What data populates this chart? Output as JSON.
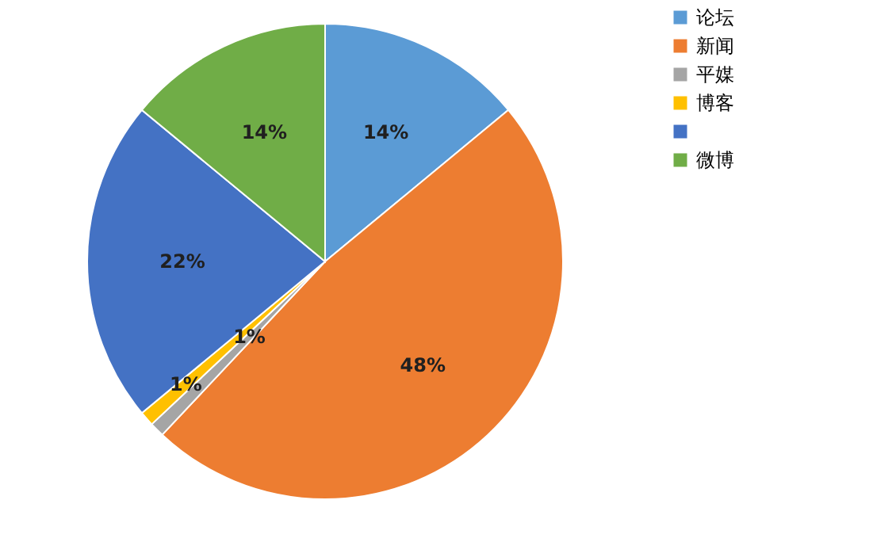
{
  "chart_data": {
    "type": "pie",
    "categories": [
      "论坛",
      "新闻",
      "平媒",
      "博客",
      null,
      "微博"
    ],
    "values": [
      14,
      48,
      1,
      1,
      22,
      14
    ],
    "colors": [
      "#5b9bd5",
      "#ed7d31",
      "#a5a5a5",
      "#ffc000",
      "#4472c4",
      "#70ad47"
    ],
    "value_labels": [
      "14%",
      "48%",
      "1%",
      "1%",
      "22%",
      "14%"
    ],
    "legend": "right"
  }
}
